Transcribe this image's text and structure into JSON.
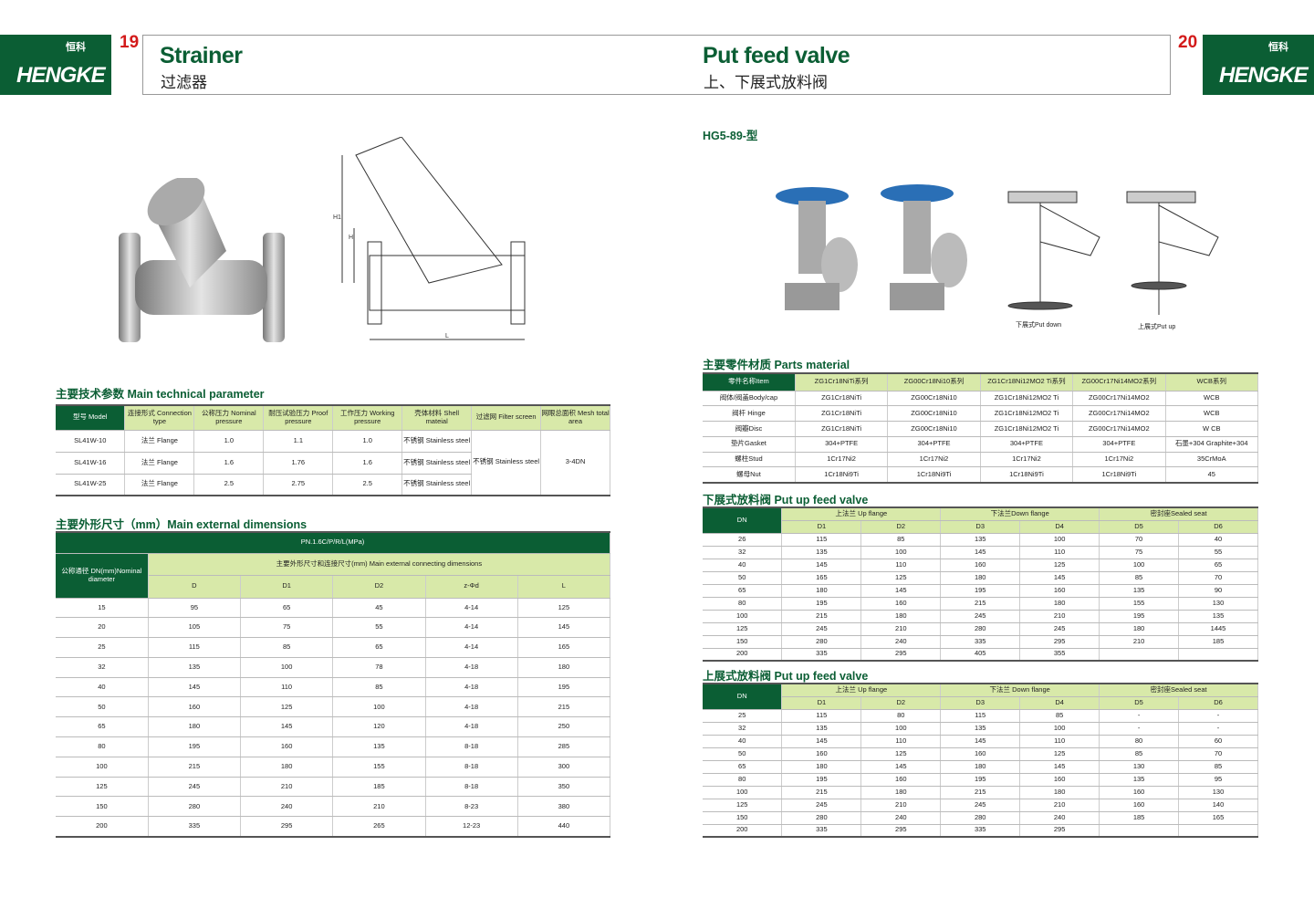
{
  "brand": {
    "name": "HENGKE",
    "cn": "恒科"
  },
  "left": {
    "page": "19",
    "title": "Strainer",
    "subtitle": "过滤器",
    "tech_title": "主要技术参数 Main technical parameter",
    "tech": {
      "headers": [
        "型号 Model",
        "连接形式 Connection type",
        "公称压力 Nominal pressure",
        "耐压试验压力 Proof pressure",
        "工作压力 Working pressure",
        "壳体材料 Shell mateial",
        "过滤网 Filter screen",
        "网眼总面积 Mesh total area"
      ],
      "rows": [
        [
          "SL41W-10",
          "法兰 Flange",
          "1.0",
          "1.1",
          "1.0",
          "不锈钢 Stainless steel"
        ],
        [
          "SL41W-16",
          "法兰 Flange",
          "1.6",
          "1.76",
          "1.6",
          "不锈钢 Stainless steel"
        ],
        [
          "SL41W-25",
          "法兰 Flange",
          "2.5",
          "2.75",
          "2.5",
          "不锈钢 Stainless steel"
        ]
      ],
      "filter": "不锈钢 Stainless steel",
      "mesh": "3-4DN"
    },
    "dim_title": "主要外形尺寸（mm）Main external dimensions",
    "dim": {
      "pn": "PN.1.6C/P/R/L(MPa)",
      "dn_head": "公称通径 DN(mm)Nominal diameter",
      "group": "主要外形尺寸和连接尺寸(mm) Main external connecting dimensions",
      "cols": [
        "D",
        "D1",
        "D2",
        "z-Φd",
        "L"
      ],
      "rows": [
        [
          "15",
          "95",
          "65",
          "45",
          "4-14",
          "125"
        ],
        [
          "20",
          "105",
          "75",
          "55",
          "4-14",
          "145"
        ],
        [
          "25",
          "115",
          "85",
          "65",
          "4-14",
          "165"
        ],
        [
          "32",
          "135",
          "100",
          "78",
          "4-18",
          "180"
        ],
        [
          "40",
          "145",
          "110",
          "85",
          "4-18",
          "195"
        ],
        [
          "50",
          "160",
          "125",
          "100",
          "4-18",
          "215"
        ],
        [
          "65",
          "180",
          "145",
          "120",
          "4-18",
          "250"
        ],
        [
          "80",
          "195",
          "160",
          "135",
          "8-18",
          "285"
        ],
        [
          "100",
          "215",
          "180",
          "155",
          "8-18",
          "300"
        ],
        [
          "125",
          "245",
          "210",
          "185",
          "8-18",
          "350"
        ],
        [
          "150",
          "280",
          "240",
          "210",
          "8-23",
          "380"
        ],
        [
          "200",
          "335",
          "295",
          "265",
          "12-23",
          "440"
        ]
      ]
    },
    "drawing_labels": [
      "H1",
      "H",
      "L"
    ]
  },
  "right": {
    "page": "20",
    "title": "Put feed valve",
    "subtitle": "上、下展式放料阀",
    "model": "HG5-89-型",
    "captions": [
      "下展式Put down",
      "上展式Put up"
    ],
    "mat_title": "主要零件材质 Parts material",
    "mat": {
      "headers": [
        "零件名称Item",
        "ZG1Cr18NiTi系列",
        "ZG00Cr18Ni10系列",
        "ZG1Cr18Ni12MO2 Ti系列",
        "ZG00Cr17Ni14MO2系列",
        "WCB系列"
      ],
      "rows": [
        [
          "阀体/阀盖Body/cap",
          "ZG1Cr18NiTi",
          "ZG00Cr18Ni10",
          "ZG1Cr18Ni12MO2 Ti",
          "ZG00Cr17Ni14MO2",
          "WCB"
        ],
        [
          "阀杆 Hinge",
          "ZG1Cr18NiTi",
          "ZG00Cr18Ni10",
          "ZG1Cr18Ni12MO2 Ti",
          "ZG00Cr17Ni14MO2",
          "WCB"
        ],
        [
          "阀瓣Disc",
          "ZG1Cr18NiTi",
          "ZG00Cr18Ni10",
          "ZG1Cr18Ni12MO2 Ti",
          "ZG00Cr17Ni14MO2",
          "W CB"
        ],
        [
          "垫片Gasket",
          "304+PTFE",
          "304+PTFE",
          "304+PTFE",
          "304+PTFE",
          "石墨+304 Graphite+304"
        ],
        [
          "螺柱Stud",
          "1Cr17Ni2",
          "1Cr17Ni2",
          "1Cr17Ni2",
          "1Cr17Ni2",
          "35CrMoA"
        ],
        [
          "螺母Nut",
          "1Cr18Ni9Ti",
          "1Cr18Ni9Ti",
          "1Cr18Ni9Ti",
          "1Cr18Ni9Ti",
          "45"
        ]
      ]
    },
    "down_title": "下展式放料阀 Put up feed valve",
    "down": {
      "groups": [
        "上法兰 Up flange",
        "下法兰Down flange",
        "密封座Sealed seat"
      ],
      "cols": [
        "DN",
        "D1",
        "D2",
        "D3",
        "D4",
        "D5",
        "D6"
      ],
      "rows": [
        [
          "26",
          "115",
          "85",
          "135",
          "100",
          "70",
          "40"
        ],
        [
          "32",
          "135",
          "100",
          "145",
          "110",
          "75",
          "55"
        ],
        [
          "40",
          "145",
          "110",
          "160",
          "125",
          "100",
          "65"
        ],
        [
          "50",
          "165",
          "125",
          "180",
          "145",
          "85",
          "70"
        ],
        [
          "65",
          "180",
          "145",
          "195",
          "160",
          "135",
          "90"
        ],
        [
          "80",
          "195",
          "160",
          "215",
          "180",
          "155",
          "130"
        ],
        [
          "100",
          "215",
          "180",
          "245",
          "210",
          "195",
          "135"
        ],
        [
          "125",
          "245",
          "210",
          "280",
          "245",
          "180",
          "1445"
        ],
        [
          "150",
          "280",
          "240",
          "335",
          "295",
          "210",
          "185"
        ],
        [
          "200",
          "335",
          "295",
          "405",
          "355",
          "",
          ""
        ]
      ]
    },
    "up_title": "上展式放料阀 Put up feed valve",
    "up": {
      "groups": [
        "上法兰 Up flange",
        "下法兰 Down flange",
        "密封座Sealed seat"
      ],
      "cols": [
        "DN",
        "D1",
        "D2",
        "D3",
        "D4",
        "D5",
        "D6"
      ],
      "rows": [
        [
          "25",
          "115",
          "80",
          "115",
          "85",
          "-",
          "-"
        ],
        [
          "32",
          "135",
          "100",
          "135",
          "100",
          "-",
          "-"
        ],
        [
          "40",
          "145",
          "110",
          "145",
          "110",
          "80",
          "60"
        ],
        [
          "50",
          "160",
          "125",
          "160",
          "125",
          "85",
          "70"
        ],
        [
          "65",
          "180",
          "145",
          "180",
          "145",
          "130",
          "85"
        ],
        [
          "80",
          "195",
          "160",
          "195",
          "160",
          "135",
          "95"
        ],
        [
          "100",
          "215",
          "180",
          "215",
          "180",
          "160",
          "130"
        ],
        [
          "125",
          "245",
          "210",
          "245",
          "210",
          "160",
          "140"
        ],
        [
          "150",
          "280",
          "240",
          "280",
          "240",
          "185",
          "165"
        ],
        [
          "200",
          "335",
          "295",
          "335",
          "295",
          "",
          ""
        ]
      ]
    }
  },
  "colors": {
    "brand_green": "#0b5e34",
    "header_green": "#d8e9a9",
    "page_number_red": "#d31a1a"
  }
}
